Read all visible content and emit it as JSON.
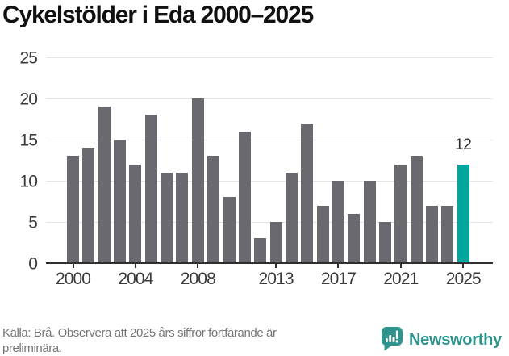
{
  "title": "Cykelstölder i Eda 2000–2025",
  "chart_data": {
    "type": "bar",
    "title": "Cykelstölder i Eda 2000–2025",
    "x": [
      2000,
      2001,
      2002,
      2003,
      2004,
      2005,
      2006,
      2007,
      2008,
      2009,
      2010,
      2011,
      2012,
      2013,
      2014,
      2015,
      2016,
      2017,
      2018,
      2019,
      2020,
      2021,
      2022,
      2023,
      2024,
      2025
    ],
    "values": [
      13,
      14,
      19,
      15,
      12,
      18,
      11,
      11,
      20,
      13,
      8,
      16,
      3,
      5,
      11,
      17,
      7,
      10,
      6,
      10,
      5,
      12,
      13,
      7,
      7,
      12
    ],
    "ylim": [
      0,
      25
    ],
    "yticks": [
      0,
      5,
      10,
      15,
      20,
      25
    ],
    "xticks": [
      2000,
      2004,
      2008,
      2013,
      2017,
      2021,
      2025
    ],
    "grid": true,
    "legend": "none",
    "bar_color": "#6a696f",
    "highlight": {
      "x": 2025,
      "color": "#00a69b",
      "label": "12"
    }
  },
  "footer": {
    "source": "Källa: Brå. Observera att 2025 års siffror fortfarande är preliminära.",
    "brand": "Newsworthy",
    "brand_color": "#2e938c"
  }
}
